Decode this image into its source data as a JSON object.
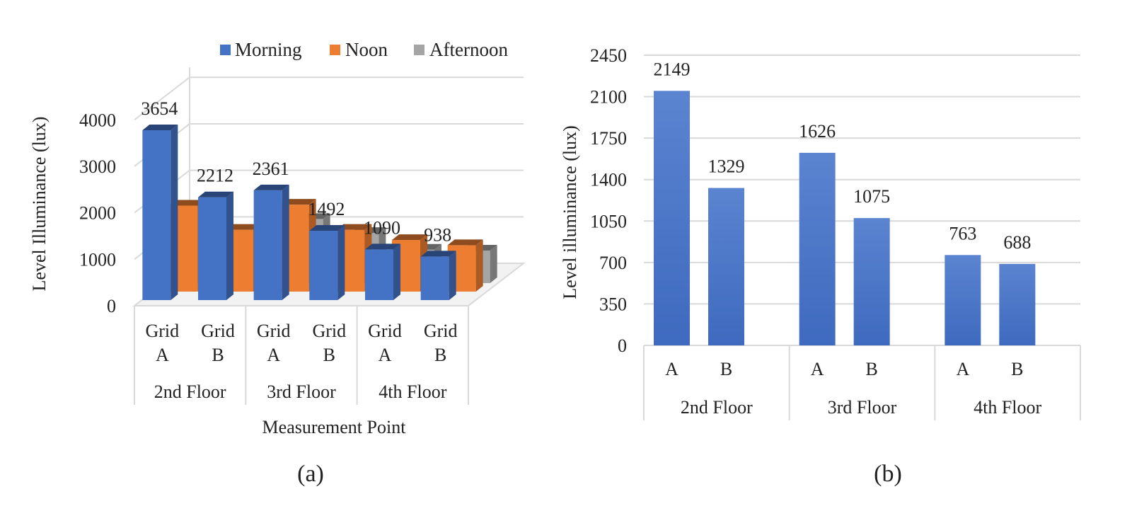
{
  "chart_data": [
    {
      "type": "bar",
      "variant": "3d-clustered",
      "title": "",
      "xlabel": "Measurement Point",
      "ylabel": "Level  Illuminance (lux)",
      "panel_label": "(a)",
      "ylim": [
        0,
        4000
      ],
      "yticks": [
        "0",
        "1000",
        "2000",
        "3000",
        "4000"
      ],
      "groups": [
        "2nd Floor",
        "3rd Floor",
        "4th Floor"
      ],
      "categories": [
        {
          "line1": "Grid",
          "line2": "A",
          "group": 0
        },
        {
          "line1": "Grid",
          "line2": "B",
          "group": 0
        },
        {
          "line1": "Grid",
          "line2": "A",
          "group": 1
        },
        {
          "line1": "Grid",
          "line2": "B",
          "group": 1
        },
        {
          "line1": "Grid",
          "line2": "A",
          "group": 2
        },
        {
          "line1": "Grid",
          "line2": "B",
          "group": 2
        }
      ],
      "legend": [
        "Morning",
        "Noon",
        "Afternoon"
      ],
      "series": [
        {
          "name": "Morning",
          "color": "#4472C4",
          "values": [
            3654,
            2212,
            2361,
            1492,
            1090,
            938
          ],
          "labels": [
            "3654",
            "2212",
            "2361",
            "1492",
            "1090",
            "938"
          ]
        },
        {
          "name": "Noon",
          "color": "#ED7D31",
          "values": [
            1850,
            1330,
            1870,
            1330,
            1110,
            1000
          ]
        },
        {
          "name": "Afternoon",
          "color": "#A5A5A5",
          "values": [
            1650,
            920,
            1380,
            1080,
            720,
            700
          ]
        }
      ]
    },
    {
      "type": "bar",
      "title": "",
      "xlabel": "",
      "ylabel": "Level illuminance (lux)",
      "panel_label": "(b)",
      "ylim": [
        0,
        2450
      ],
      "yticks": [
        "0",
        "350",
        "700",
        "1050",
        "1400",
        "1750",
        "2100",
        "2450"
      ],
      "groups": [
        "2nd Floor",
        "3rd Floor",
        "4th Floor"
      ],
      "categories": [
        {
          "label": "A",
          "group": 0
        },
        {
          "label": "B",
          "group": 0
        },
        {
          "label": "A",
          "group": 1
        },
        {
          "label": "B",
          "group": 1
        },
        {
          "label": "A",
          "group": 2
        },
        {
          "label": "B",
          "group": 2
        }
      ],
      "series": [
        {
          "name": "Illuminance",
          "color": "#4472C4",
          "values": [
            2149,
            1329,
            1626,
            1075,
            763,
            688
          ],
          "labels": [
            "2149",
            "1329",
            "1626",
            "1075",
            "763",
            "688"
          ]
        }
      ]
    }
  ]
}
